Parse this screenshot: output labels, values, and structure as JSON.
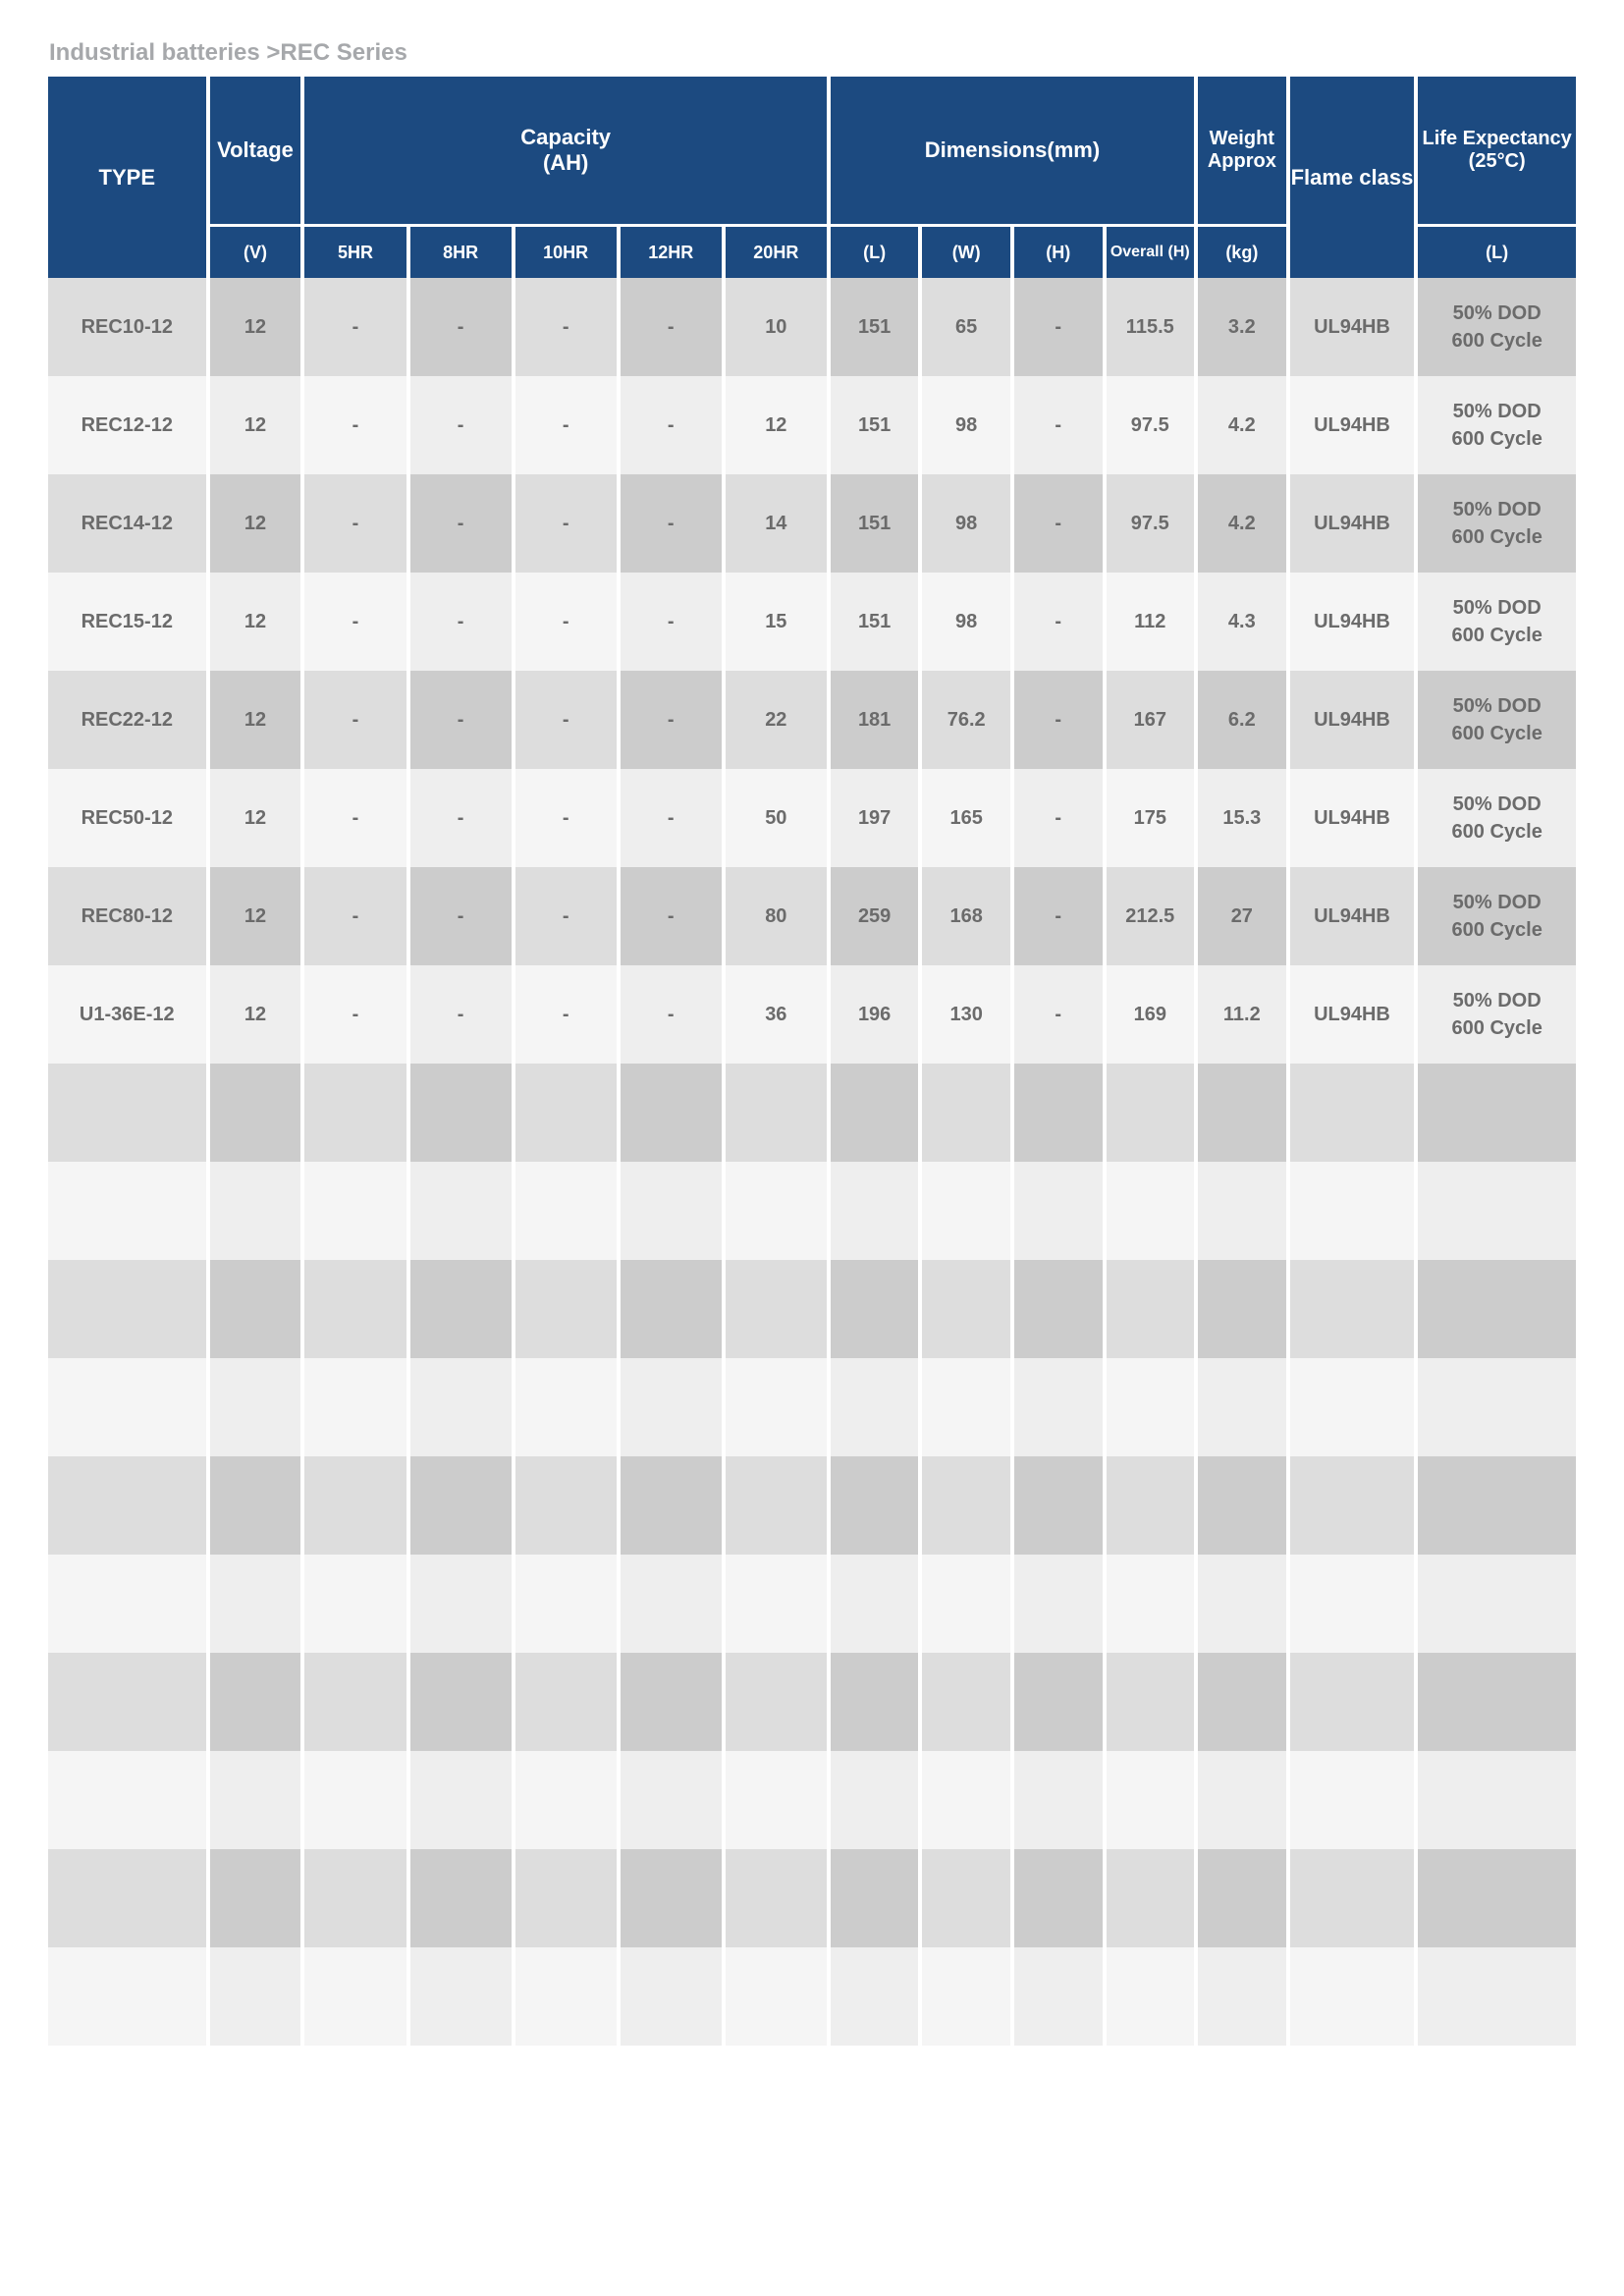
{
  "breadcrumb": "Industrial batteries >REC Series",
  "headers": {
    "type": "TYPE",
    "voltage": "Voltage",
    "capacity": "Capacity\n(AH)",
    "dimensions": "Dimensions(mm)",
    "weight": "Weight Approx",
    "flame": "Flame class",
    "life": "Life Expectancy (25°C)"
  },
  "subheaders": {
    "voltage_unit": "(V)",
    "cap": [
      "5HR",
      "8HR",
      "10HR",
      "12HR",
      "20HR"
    ],
    "dim": [
      "(L)",
      "(W)",
      "(H)",
      "Overall (H)"
    ],
    "weight_unit": "(kg)",
    "life_unit": "(L)"
  },
  "rows": [
    {
      "type": "REC10-12",
      "v": "12",
      "c": [
        "-",
        "-",
        "-",
        "-",
        "10"
      ],
      "d": [
        "151",
        "65",
        "-",
        "115.5"
      ],
      "w": "3.2",
      "f": "UL94HB",
      "l": "50% DOD 600 Cycle"
    },
    {
      "type": "REC12-12",
      "v": "12",
      "c": [
        "-",
        "-",
        "-",
        "-",
        "12"
      ],
      "d": [
        "151",
        "98",
        "-",
        "97.5"
      ],
      "w": "4.2",
      "f": "UL94HB",
      "l": "50% DOD 600 Cycle"
    },
    {
      "type": "REC14-12",
      "v": "12",
      "c": [
        "-",
        "-",
        "-",
        "-",
        "14"
      ],
      "d": [
        "151",
        "98",
        "-",
        "97.5"
      ],
      "w": "4.2",
      "f": "UL94HB",
      "l": "50% DOD 600 Cycle"
    },
    {
      "type": "REC15-12",
      "v": "12",
      "c": [
        "-",
        "-",
        "-",
        "-",
        "15"
      ],
      "d": [
        "151",
        "98",
        "-",
        "112"
      ],
      "w": "4.3",
      "f": "UL94HB",
      "l": "50% DOD 600 Cycle"
    },
    {
      "type": "REC22-12",
      "v": "12",
      "c": [
        "-",
        "-",
        "-",
        "-",
        "22"
      ],
      "d": [
        "181",
        "76.2",
        "-",
        "167"
      ],
      "w": "6.2",
      "f": "UL94HB",
      "l": "50% DOD 600 Cycle"
    },
    {
      "type": "REC50-12",
      "v": "12",
      "c": [
        "-",
        "-",
        "-",
        "-",
        "50"
      ],
      "d": [
        "197",
        "165",
        "-",
        "175"
      ],
      "w": "15.3",
      "f": "UL94HB",
      "l": "50% DOD 600 Cycle"
    },
    {
      "type": "REC80-12",
      "v": "12",
      "c": [
        "-",
        "-",
        "-",
        "-",
        "80"
      ],
      "d": [
        "259",
        "168",
        "-",
        "212.5"
      ],
      "w": "27",
      "f": "UL94HB",
      "l": "50% DOD 600 Cycle"
    },
    {
      "type": "U1-36E-12",
      "v": "12",
      "c": [
        "-",
        "-",
        "-",
        "-",
        "36"
      ],
      "d": [
        "196",
        "130",
        "-",
        "169"
      ],
      "w": "11.2",
      "f": "UL94HB",
      "l": "50% DOD 600 Cycle"
    }
  ],
  "empty_rows": 10,
  "colors": {
    "header_bg": "#1c4a80",
    "header_text": "#ffffff",
    "row_odd": "#cccccc",
    "row_odd_alt": "#dddddd",
    "row_even": "#eeeeee",
    "row_even_alt": "#f5f5f5",
    "cell_text": "#6b6b6b",
    "breadcrumb": "#a6a8ab"
  }
}
